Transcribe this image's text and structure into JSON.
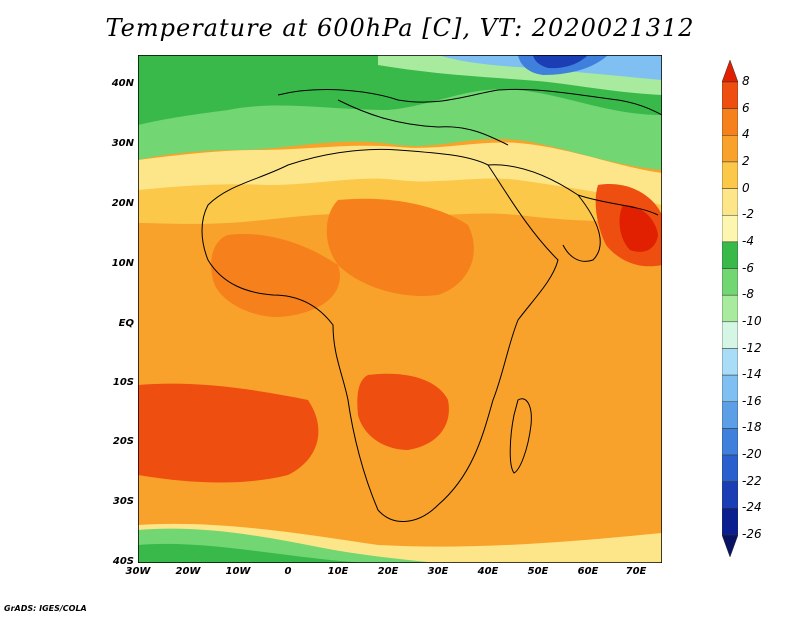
{
  "title": "Temperature at 600hPa [C], VT: 2020021312",
  "credit": "GrADS: IGES/COLA",
  "map": {
    "lat_labels": [
      "40N",
      "30N",
      "20N",
      "10N",
      "EQ",
      "10S",
      "20S",
      "30S",
      "40S"
    ],
    "lon_labels": [
      "30W",
      "20W",
      "10W",
      "0",
      "10E",
      "20E",
      "30E",
      "40E",
      "50E",
      "60E",
      "70E"
    ]
  },
  "colorbar": {
    "labels": [
      "8",
      "6",
      "4",
      "2",
      "0",
      "-2",
      "-4",
      "-6",
      "-8",
      "-10",
      "-12",
      "-14",
      "-16",
      "-18",
      "-20",
      "-22",
      "-24",
      "-26"
    ],
    "colors": [
      "#e02000",
      "#ee4f10",
      "#f5801c",
      "#f9a22b",
      "#fcc84a",
      "#fde68a",
      "#fdf6b0",
      "#39b94a",
      "#72d673",
      "#a8ea9e",
      "#d5f5e5",
      "#a9dcf7",
      "#7fbff1",
      "#5d9fe7",
      "#3f80dc",
      "#2a60cd",
      "#1c3eb4",
      "#0b1f8f",
      "#081463"
    ]
  }
}
